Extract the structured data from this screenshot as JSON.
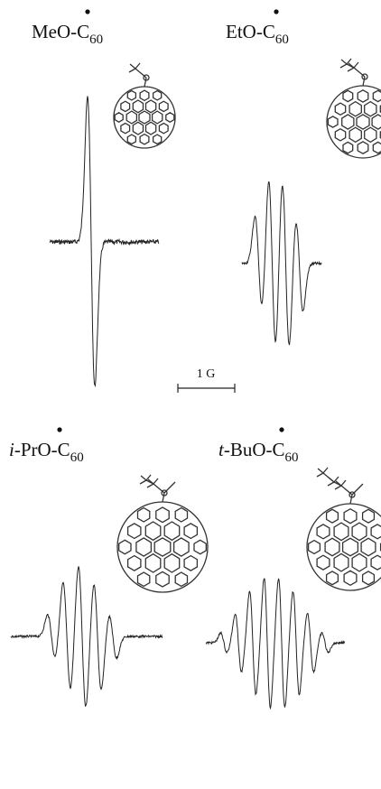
{
  "panels": [
    {
      "label": {
        "main": "MeO-C",
        "sub": "60"
      }
    },
    {
      "label": {
        "main": "EtO-C",
        "sub": "60"
      }
    },
    {
      "label": {
        "italic": "i",
        "main": "-PrO-C",
        "sub": "60"
      }
    },
    {
      "label": {
        "italic": "t",
        "main": "-BuO-C",
        "sub": "60"
      }
    }
  ],
  "scale_bar": "1 G"
}
